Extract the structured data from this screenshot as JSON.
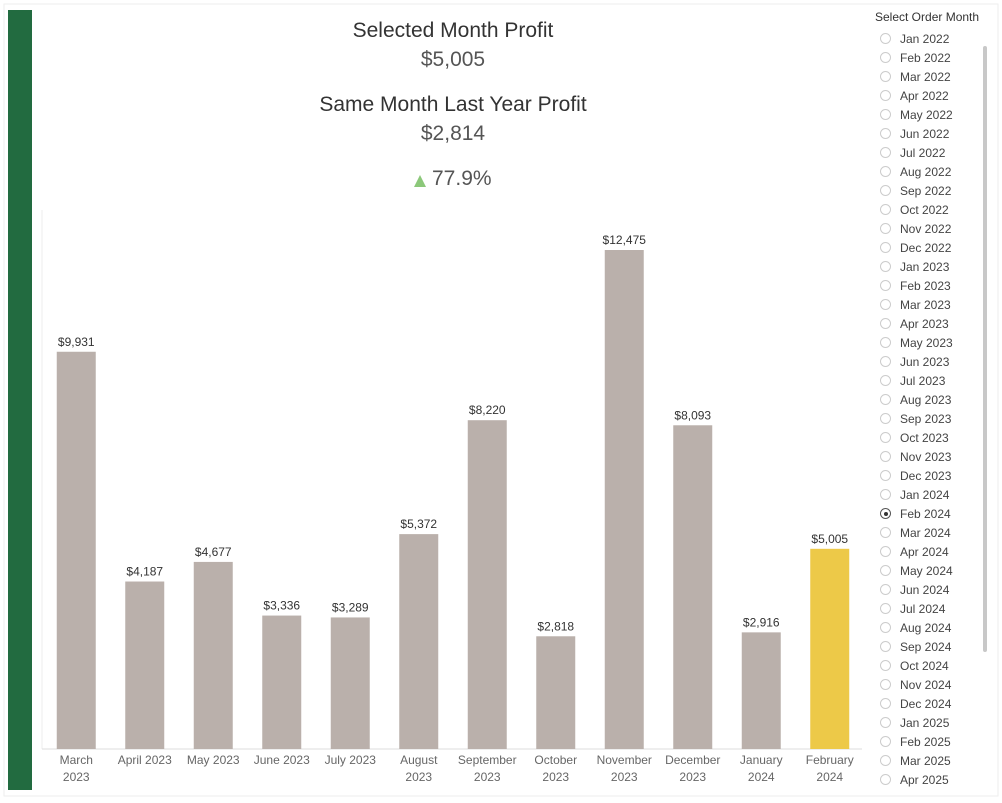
{
  "kpi": {
    "selected_title": "Selected Month Profit",
    "selected_value": "$5,005",
    "last_year_title": "Same Month Last Year Profit",
    "last_year_value": "$2,814",
    "change": "77.9%"
  },
  "chart_data": {
    "type": "bar",
    "categories": [
      "March 2023",
      "April 2023",
      "May 2023",
      "June 2023",
      "July 2023",
      "August 2023",
      "September 2023",
      "October 2023",
      "November 2023",
      "December 2023",
      "January 2024",
      "February 2024"
    ],
    "values": [
      9931,
      4187,
      4677,
      3336,
      3289,
      5372,
      8220,
      2818,
      12475,
      8093,
      2916,
      5005
    ],
    "value_labels": [
      "$9,931",
      "$4,187",
      "$4,677",
      "$3,336",
      "$3,289",
      "$5,372",
      "$8,220",
      "$2,818",
      "$12,475",
      "$8,093",
      "$2,916",
      "$5,005"
    ],
    "color": "#bab0ab",
    "highlight_color": "#edc948",
    "highlight_index": 11
  },
  "filter": {
    "title": "Select Order Month",
    "selected_index": 25,
    "options": [
      "Jan 2022",
      "Feb 2022",
      "Mar 2022",
      "Apr 2022",
      "May 2022",
      "Jun 2022",
      "Jul 2022",
      "Aug 2022",
      "Sep 2022",
      "Oct 2022",
      "Nov 2022",
      "Dec 2022",
      "Jan 2023",
      "Feb 2023",
      "Mar 2023",
      "Apr 2023",
      "May 2023",
      "Jun 2023",
      "Jul 2023",
      "Aug 2023",
      "Sep 2023",
      "Oct 2023",
      "Nov 2023",
      "Dec 2023",
      "Jan 2024",
      "Feb 2024",
      "Mar 2024",
      "Apr 2024",
      "May 2024",
      "Jun 2024",
      "Jul 2024",
      "Aug 2024",
      "Sep 2024",
      "Oct 2024",
      "Nov 2024",
      "Dec 2024",
      "Jan 2025",
      "Feb 2025",
      "Mar 2025",
      "Apr 2025"
    ]
  }
}
